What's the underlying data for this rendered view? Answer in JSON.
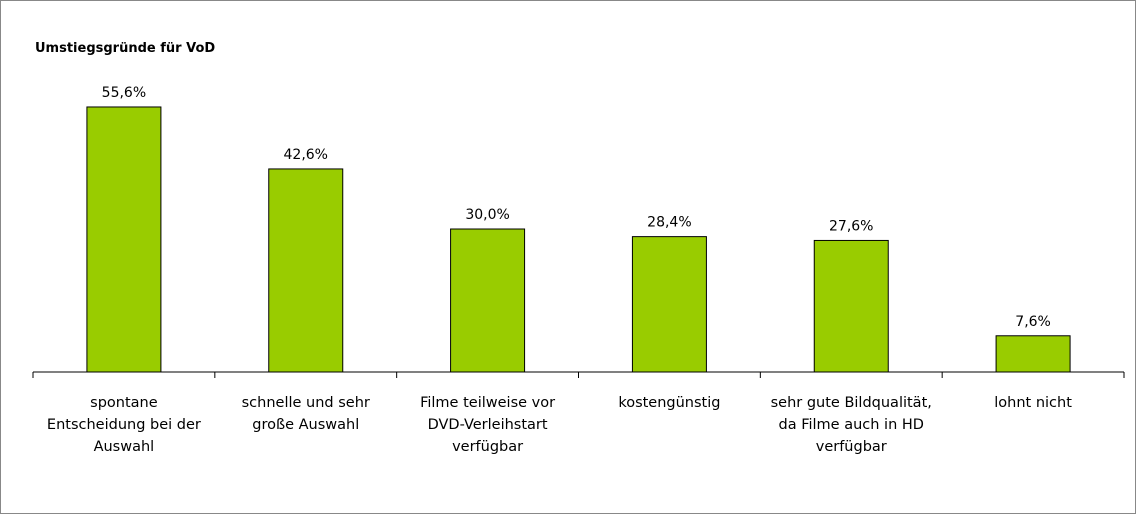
{
  "chart_data": {
    "type": "bar",
    "title": "Umstiegsgründe für VoD",
    "categories": [
      "spontane Entscheidung bei der Auswahl",
      "schnelle und sehr große Auswahl",
      "Filme teilweise vor DVD-Verleihstart verfügbar",
      "kostengünstig",
      "sehr gute Bildqualität, da Filme auch in HD verfügbar",
      "lohnt nicht"
    ],
    "values": [
      55.6,
      42.6,
      30.0,
      28.4,
      27.6,
      7.6
    ],
    "value_labels": [
      "55,6%",
      "42,6%",
      "30,0%",
      "28,4%",
      "27,6%",
      "7,6%"
    ],
    "color": "#99cc00",
    "ylim": [
      0,
      60
    ]
  }
}
